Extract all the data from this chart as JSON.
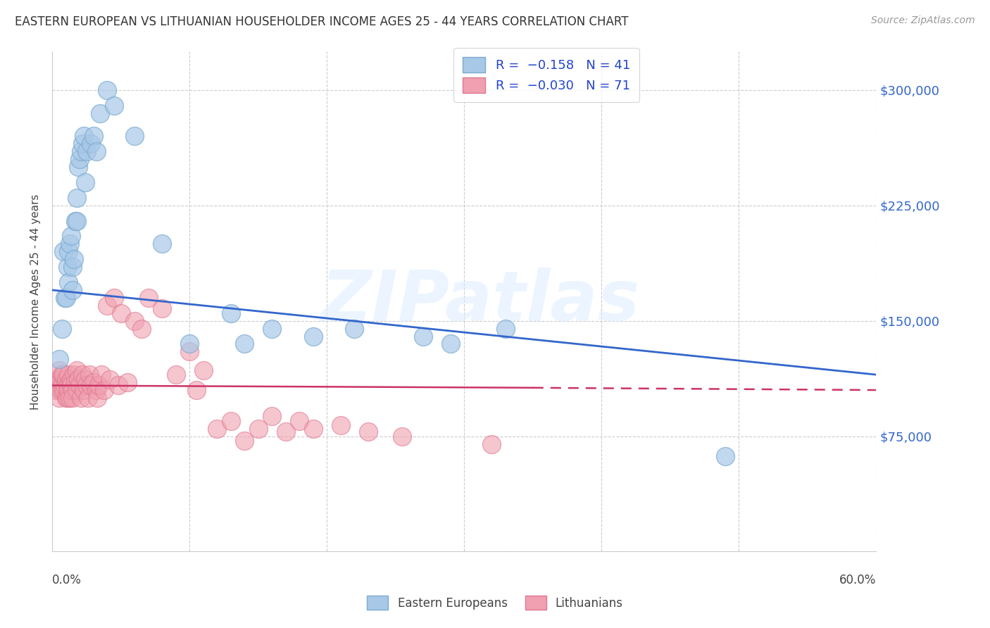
{
  "title": "EASTERN EUROPEAN VS LITHUANIAN HOUSEHOLDER INCOME AGES 25 - 44 YEARS CORRELATION CHART",
  "source": "Source: ZipAtlas.com",
  "ylabel": "Householder Income Ages 25 - 44 years",
  "xlim": [
    0.0,
    0.6
  ],
  "ylim": [
    0,
    325000
  ],
  "ytick_vals": [
    0,
    75000,
    150000,
    225000,
    300000
  ],
  "ytick_labels": [
    "",
    "$75,000",
    "$150,000",
    "$225,000",
    "$300,000"
  ],
  "background_color": "#ffffff",
  "watermark": "ZIPatlas",
  "blue_face": "#a8c8e8",
  "blue_edge": "#7aaad0",
  "pink_face": "#f0a0b0",
  "pink_edge": "#e07890",
  "line_blue": "#3366cc",
  "line_pink": "#cc3366",
  "blue_line_y0": 170000,
  "blue_line_y1": 115000,
  "pink_line_y0": 108000,
  "pink_line_y1": 105000,
  "ee_x": [
    0.005,
    0.007,
    0.008,
    0.009,
    0.01,
    0.011,
    0.012,
    0.012,
    0.013,
    0.014,
    0.015,
    0.015,
    0.016,
    0.017,
    0.018,
    0.018,
    0.019,
    0.02,
    0.021,
    0.022,
    0.023,
    0.024,
    0.025,
    0.028,
    0.03,
    0.032,
    0.035,
    0.04,
    0.045,
    0.06,
    0.08,
    0.1,
    0.13,
    0.14,
    0.16,
    0.19,
    0.22,
    0.27,
    0.29,
    0.33,
    0.49
  ],
  "ee_y": [
    125000,
    145000,
    195000,
    165000,
    165000,
    185000,
    175000,
    195000,
    200000,
    205000,
    170000,
    185000,
    190000,
    215000,
    215000,
    230000,
    250000,
    255000,
    260000,
    265000,
    270000,
    240000,
    260000,
    265000,
    270000,
    260000,
    285000,
    300000,
    290000,
    270000,
    200000,
    135000,
    155000,
    135000,
    145000,
    140000,
    145000,
    140000,
    135000,
    145000,
    62000
  ],
  "lit_x": [
    0.001,
    0.002,
    0.003,
    0.004,
    0.005,
    0.005,
    0.006,
    0.006,
    0.007,
    0.007,
    0.008,
    0.008,
    0.009,
    0.01,
    0.01,
    0.011,
    0.011,
    0.012,
    0.012,
    0.013,
    0.013,
    0.014,
    0.014,
    0.015,
    0.015,
    0.016,
    0.017,
    0.018,
    0.018,
    0.019,
    0.02,
    0.021,
    0.022,
    0.023,
    0.024,
    0.025,
    0.026,
    0.027,
    0.028,
    0.03,
    0.032,
    0.033,
    0.034,
    0.036,
    0.038,
    0.04,
    0.042,
    0.045,
    0.048,
    0.05,
    0.055,
    0.06,
    0.065,
    0.07,
    0.08,
    0.09,
    0.1,
    0.105,
    0.11,
    0.12,
    0.13,
    0.14,
    0.15,
    0.16,
    0.17,
    0.18,
    0.19,
    0.21,
    0.23,
    0.255,
    0.32
  ],
  "lit_y": [
    110000,
    105000,
    108000,
    112000,
    118000,
    100000,
    105000,
    112000,
    108000,
    115000,
    105000,
    115000,
    108000,
    100000,
    112000,
    100000,
    108000,
    115000,
    105000,
    110000,
    100000,
    112000,
    108000,
    105000,
    100000,
    115000,
    110000,
    118000,
    105000,
    112000,
    108000,
    100000,
    115000,
    105000,
    112000,
    108000,
    100000,
    115000,
    108000,
    110000,
    105000,
    100000,
    108000,
    115000,
    105000,
    160000,
    112000,
    165000,
    108000,
    155000,
    110000,
    150000,
    145000,
    165000,
    158000,
    115000,
    130000,
    105000,
    118000,
    80000,
    85000,
    72000,
    80000,
    88000,
    78000,
    85000,
    80000,
    82000,
    78000,
    75000,
    70000
  ]
}
